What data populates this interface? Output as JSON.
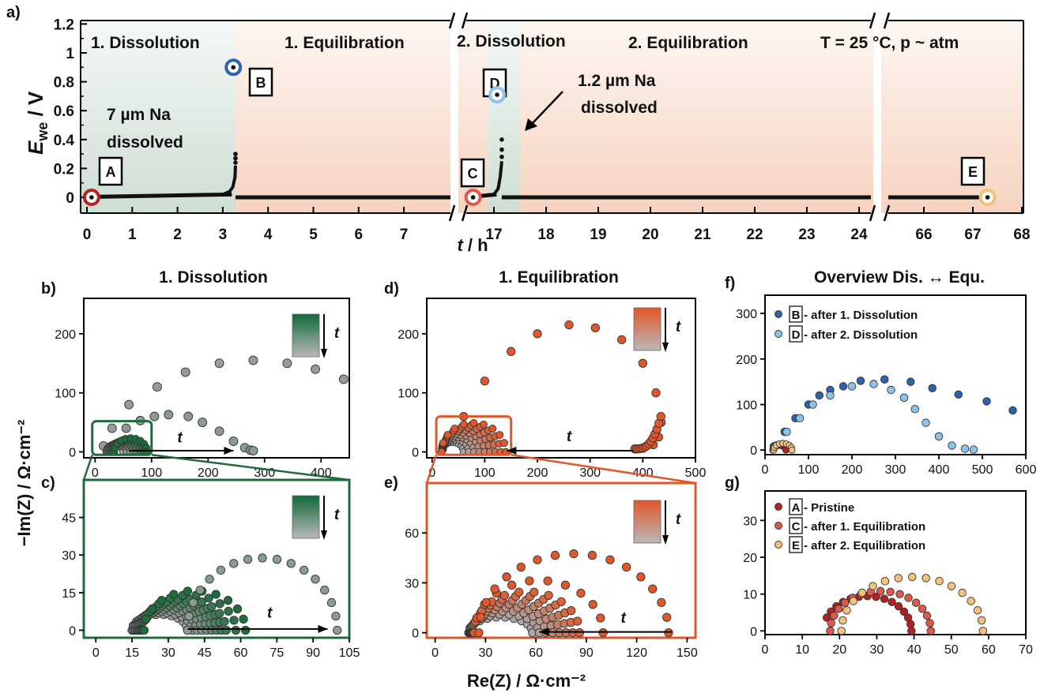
{
  "figure": {
    "shared_ylabel": "−Im(Z) / Ω·cm⁻²",
    "shared_xlabel": "Re(Z) / Ω·cm⁻²",
    "time_symbol": "t",
    "colors": {
      "green": "#1e6b3c",
      "orange": "#e2572a",
      "blue_dark": "#2f62ad",
      "blue_light": "#8fc3e6",
      "red_dark": "#b22222",
      "red_mid": "#e0584a",
      "peach": "#f5c27c",
      "grey": "#9a9a9a",
      "bg_green": "#dfe9e2",
      "bg_peach": "#f8dccb"
    }
  },
  "chart_data": [
    {
      "panel": "a)",
      "type": "scatter",
      "ylabel_main": "E",
      "ylabel_sub": "we",
      "ylabel_unit": " / V",
      "xlabel": "t / h",
      "ylim": [
        0,
        1.2
      ],
      "yticks": [
        "0",
        "0.2",
        "0.4",
        "0.6",
        "0.8",
        "1",
        "1.2"
      ],
      "xticks_seg1": [
        "0",
        "1",
        "2",
        "3",
        "4",
        "5",
        "6",
        "7"
      ],
      "xticks_seg2": [
        "17",
        "18",
        "19",
        "20",
        "21",
        "22",
        "23",
        "24"
      ],
      "xticks_seg3": [
        "66",
        "67",
        "68"
      ],
      "regions": [
        "1. Dissolution",
        "1. Equilibration",
        "2. Dissolution",
        "2. Equilibration"
      ],
      "conditions": "T = 25 °C, p ~ atm",
      "annotations": [
        "7 µm Na",
        "dissolved",
        "1.2 µm Na",
        "dissolved"
      ],
      "markers": [
        "A",
        "B",
        "C",
        "D",
        "E"
      ],
      "points": {
        "A": {
          "t": 0.05,
          "E": 0.0
        },
        "B": {
          "t": 3.25,
          "E": 0.9
        },
        "C": {
          "t": 16.6,
          "E": 0.0
        },
        "D": {
          "t": 17.0,
          "E": 0.71
        },
        "E": {
          "t": 67.3,
          "E": 0.0
        }
      },
      "spikes": [
        {
          "t": 3.28,
          "E": 0.3
        },
        {
          "t": 17.15,
          "E": 0.4
        }
      ]
    },
    {
      "panel": "b)",
      "type": "scatter",
      "title": "1. Dissolution",
      "xticks": [
        "0",
        "100",
        "200",
        "300",
        "400"
      ],
      "yticks": [
        "0",
        "100",
        "200"
      ],
      "xlim": [
        -20,
        450
      ],
      "ylim": [
        -10,
        260
      ],
      "last_semicircle": {
        "Re": [
          23,
          55,
          80,
          105,
          130,
          165,
          190,
          220,
          245,
          265,
          275,
          280
        ],
        "Im": [
          4,
          40,
          53,
          60,
          63,
          60,
          50,
          35,
          18,
          7,
          3,
          2
        ]
      },
      "first_semicircle": {
        "Re": [
          15,
          30,
          60,
          110,
          160,
          220,
          280,
          340,
          390,
          440
        ],
        "Im": [
          10,
          40,
          80,
          110,
          135,
          150,
          155,
          150,
          140,
          123
        ]
      }
    },
    {
      "panel": "c)",
      "type": "scatter",
      "xticks": [
        "0",
        "15",
        "30",
        "45",
        "60",
        "75",
        "90",
        "105"
      ],
      "yticks": [
        "0",
        "15",
        "30",
        "45"
      ],
      "xlim": [
        -5,
        105
      ],
      "ylim": [
        -3,
        60
      ],
      "arcs_end_Re": [
        38,
        40,
        42,
        44,
        46,
        48,
        50,
        52,
        54,
        58,
        62,
        100
      ]
    },
    {
      "panel": "d)",
      "type": "scatter",
      "title": "1. Equilibration",
      "xticks": [
        "0",
        "100",
        "200",
        "300",
        "400",
        "500"
      ],
      "yticks": [
        "0",
        "100",
        "200"
      ],
      "xlim": [
        -10,
        500
      ],
      "ylim": [
        -10,
        260
      ],
      "first_semicircle": {
        "Re": [
          20,
          60,
          100,
          150,
          200,
          260,
          310,
          360,
          400,
          425,
          435,
          430,
          420,
          400,
          385
        ],
        "Im": [
          5,
          60,
          120,
          170,
          200,
          215,
          210,
          190,
          150,
          100,
          50,
          25,
          12,
          6,
          5
        ]
      }
    },
    {
      "panel": "e)",
      "type": "scatter",
      "xticks": [
        "0",
        "30",
        "60",
        "90",
        "120",
        "150"
      ],
      "yticks": [
        "0",
        "30",
        "60"
      ],
      "xlim": [
        -5,
        155
      ],
      "ylim": [
        -3,
        90
      ],
      "arcs_end_Re": [
        58,
        62,
        66,
        70,
        74,
        78,
        82,
        86,
        100,
        139
      ]
    },
    {
      "panel": "f)",
      "type": "scatter",
      "title": "Overview Dis. ↔ Equ.",
      "xticks": [
        "0",
        "100",
        "200",
        "300",
        "400",
        "500",
        "600"
      ],
      "yticks": [
        "0",
        "100",
        "200",
        "300"
      ],
      "xlim": [
        0,
        600
      ],
      "ylim": [
        -10,
        340
      ],
      "legend": [
        {
          "box": "B",
          "text": " - after 1. Dissolution"
        },
        {
          "box": "D",
          "text": " - after 2. Dissolution"
        }
      ],
      "series": [
        {
          "box": "B",
          "Re": [
            20,
            45,
            70,
            100,
            125,
            150,
            180,
            220,
            275,
            335,
            385,
            445,
            510,
            570
          ],
          "Im": [
            8,
            40,
            70,
            100,
            120,
            132,
            140,
            152,
            155,
            150,
            136,
            122,
            107,
            87
          ]
        },
        {
          "box": "D",
          "Re": [
            25,
            50,
            80,
            110,
            150,
            200,
            250,
            290,
            320,
            345,
            370,
            400,
            430,
            460,
            480
          ],
          "Im": [
            10,
            40,
            70,
            100,
            120,
            140,
            145,
            132,
            115,
            90,
            60,
            30,
            10,
            3,
            1
          ]
        }
      ]
    },
    {
      "panel": "g)",
      "type": "scatter",
      "xticks": [
        "0",
        "10",
        "20",
        "30",
        "40",
        "50",
        "60",
        "70"
      ],
      "yticks": [
        "0",
        "10",
        "20",
        "30"
      ],
      "xlim": [
        0,
        70
      ],
      "ylim": [
        -1,
        38
      ],
      "legend": [
        {
          "box": "A",
          "text": " - Pristine"
        },
        {
          "box": "C",
          "text": " - after 1. Equilibration"
        },
        {
          "box": "E",
          "text": " - after 2. Equilibration"
        }
      ],
      "series": [
        {
          "box": "A",
          "center": 27.5,
          "radius": 11.8,
          "start": 16
        },
        {
          "box": "C",
          "center": 31.0,
          "radius": 13.5,
          "start": 17.5
        },
        {
          "box": "E",
          "center": 39.5,
          "radius": 19.0,
          "start": 20.5
        }
      ]
    }
  ]
}
